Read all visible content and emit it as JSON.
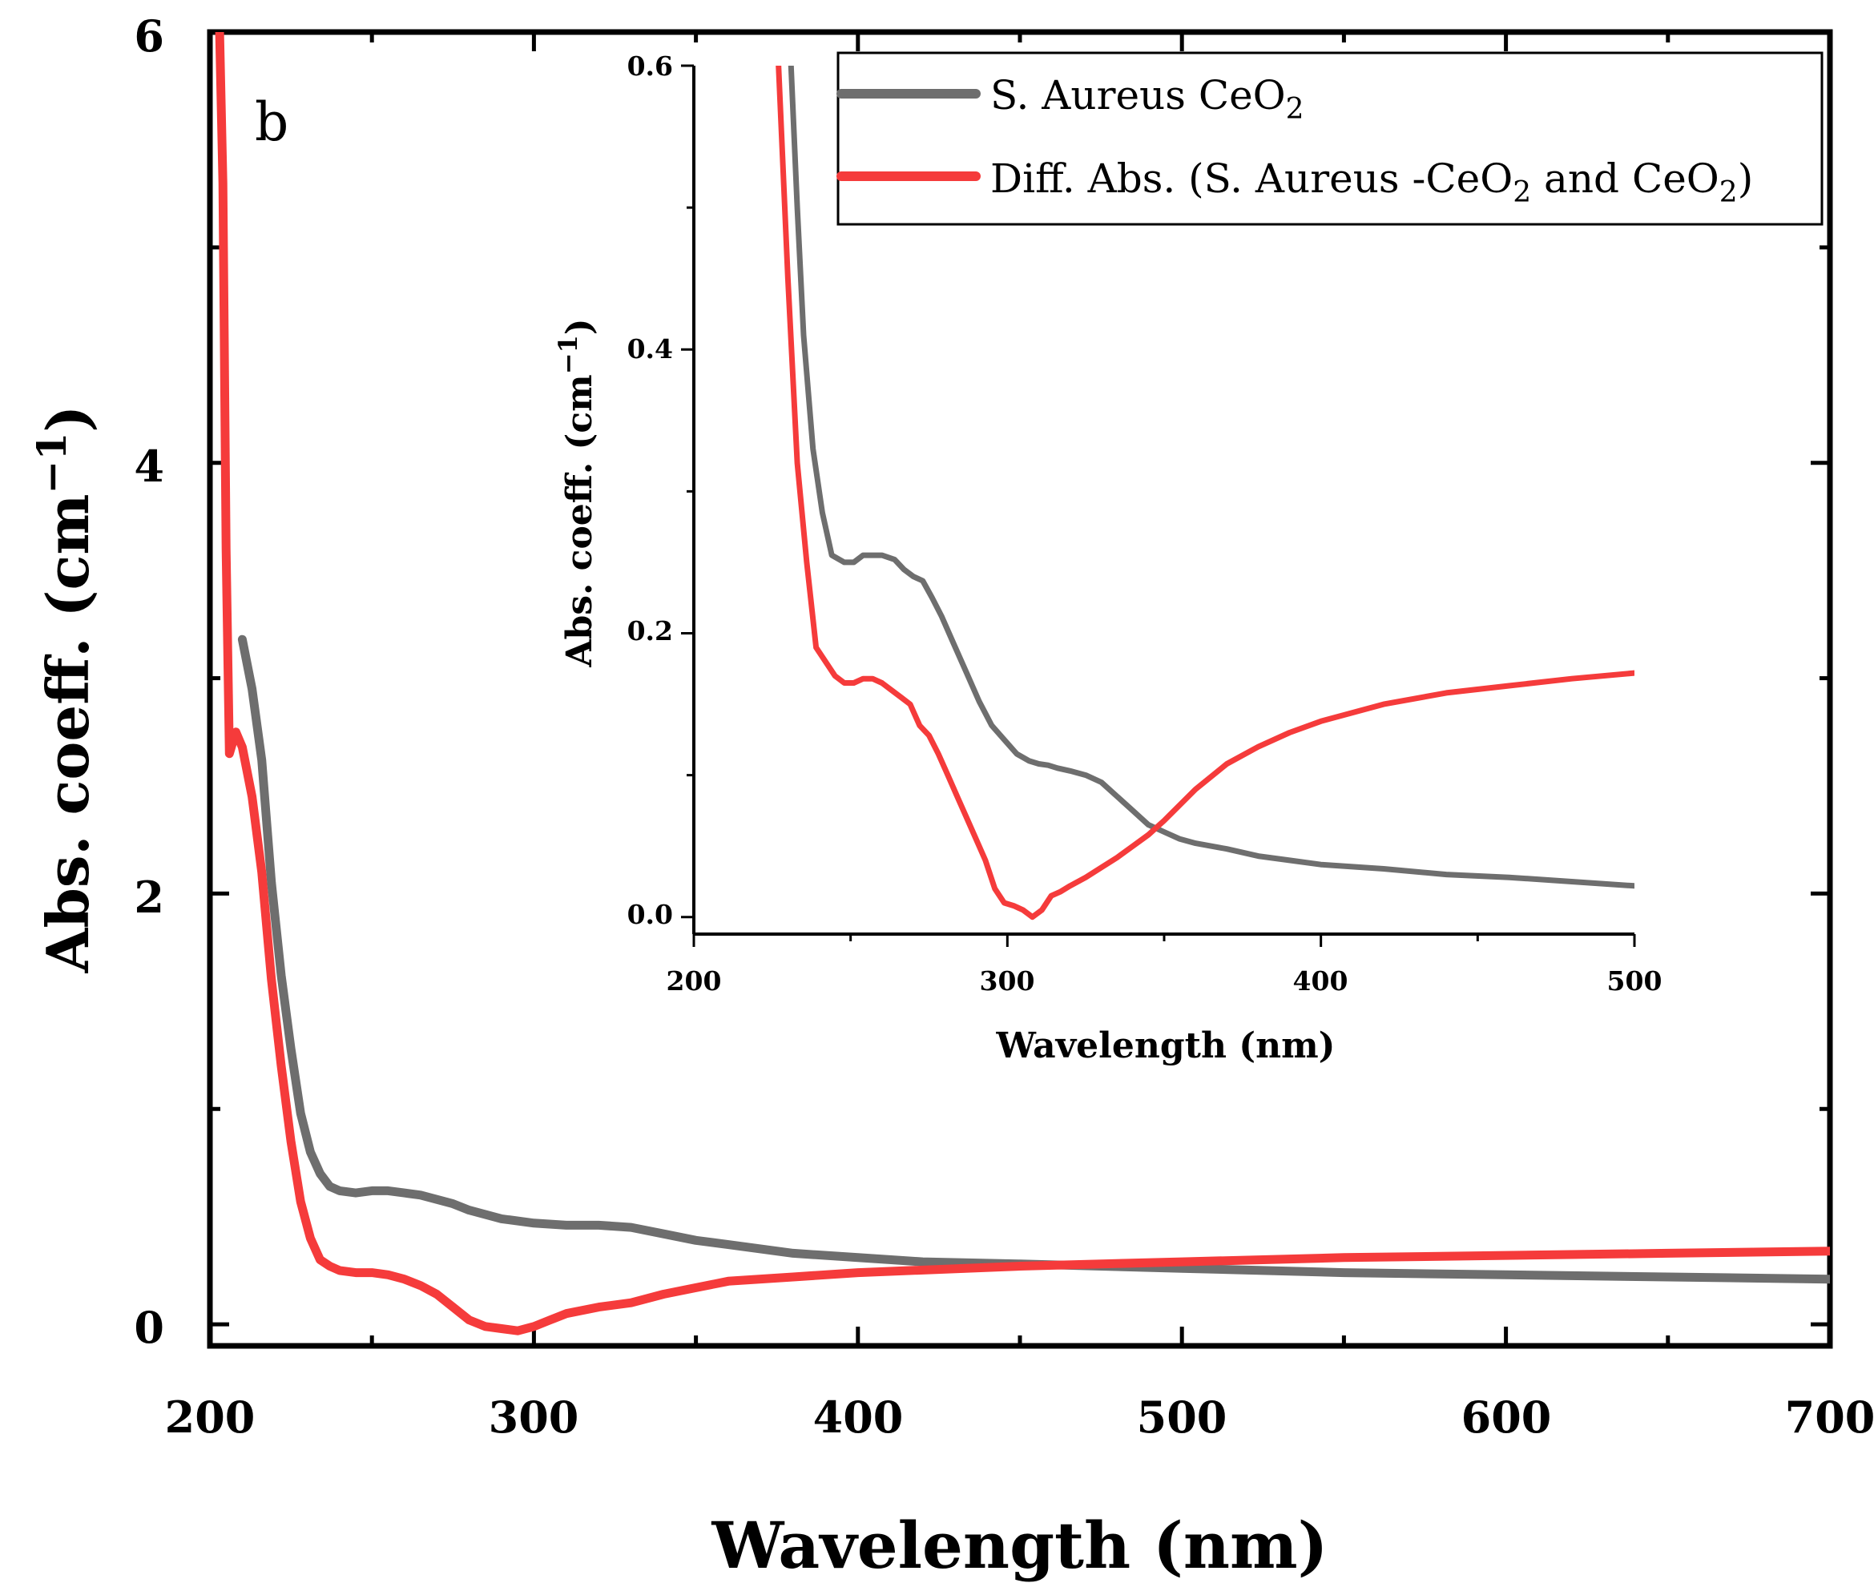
{
  "chart_data": [
    {
      "type": "line",
      "panel_label": "b",
      "xlabel": "Wavelength (nm)",
      "ylabel": "Abs. coeff. (cm",
      "ylabel_sup": "−1",
      "ylabel_close": ")",
      "xlim": [
        200,
        700
      ],
      "ylim": [
        -0.1,
        6
      ],
      "xticks": [
        200,
        300,
        400,
        500,
        600,
        700
      ],
      "yticks": [
        0,
        2,
        4,
        6
      ],
      "series": [
        {
          "name": "S. Aureus CeO2",
          "color": "#6e6e6e",
          "x": [
            210,
            213,
            216,
            219,
            222,
            225,
            228,
            231,
            234,
            237,
            240,
            245,
            250,
            255,
            260,
            265,
            270,
            275,
            280,
            290,
            300,
            310,
            320,
            330,
            340,
            350,
            360,
            380,
            400,
            420,
            450,
            500,
            550,
            600,
            650,
            700
          ],
          "y": [
            3.18,
            2.95,
            2.62,
            2.05,
            1.62,
            1.28,
            0.98,
            0.8,
            0.7,
            0.64,
            0.62,
            0.61,
            0.62,
            0.62,
            0.61,
            0.6,
            0.58,
            0.56,
            0.53,
            0.49,
            0.47,
            0.46,
            0.46,
            0.45,
            0.42,
            0.39,
            0.37,
            0.33,
            0.31,
            0.29,
            0.28,
            0.26,
            0.24,
            0.23,
            0.22,
            0.21
          ]
        },
        {
          "name": "Diff. Abs. (S. Aureus -CeO2 and CeO2)",
          "color": "#f53b3b",
          "x": [
            203,
            204,
            205,
            206,
            207,
            208,
            210,
            213,
            216,
            219,
            222,
            225,
            228,
            231,
            234,
            237,
            240,
            245,
            250,
            255,
            260,
            265,
            270,
            275,
            280,
            285,
            290,
            295,
            300,
            305,
            310,
            320,
            330,
            340,
            350,
            360,
            380,
            400,
            450,
            500,
            550,
            600,
            650,
            700
          ],
          "y": [
            6.0,
            5.3,
            3.6,
            2.65,
            2.7,
            2.75,
            2.68,
            2.45,
            2.1,
            1.6,
            1.2,
            0.85,
            0.57,
            0.4,
            0.3,
            0.27,
            0.25,
            0.24,
            0.24,
            0.23,
            0.21,
            0.18,
            0.14,
            0.08,
            0.02,
            -0.01,
            -0.02,
            -0.03,
            -0.01,
            0.02,
            0.05,
            0.08,
            0.1,
            0.14,
            0.17,
            0.2,
            0.22,
            0.24,
            0.27,
            0.29,
            0.31,
            0.32,
            0.33,
            0.34
          ]
        }
      ]
    },
    {
      "type": "line",
      "role": "inset",
      "xlabel": "Wavelength (nm)",
      "ylabel": "Abs. coeff. (cm",
      "ylabel_sup": "−1",
      "ylabel_close": ")",
      "xlim": [
        200,
        500
      ],
      "ylim": [
        -0.012,
        0.6
      ],
      "xticks": [
        200,
        300,
        400,
        500
      ],
      "yticks": [
        0.0,
        0.2,
        0.4,
        0.6
      ],
      "ytick_labels": [
        "0.0",
        "0.2",
        "0.4",
        "0.6"
      ],
      "series": [
        {
          "name": "S. Aureus CeO2",
          "color": "#6e6e6e",
          "x": [
            231,
            233,
            235,
            238,
            241,
            244,
            248,
            251,
            254,
            257,
            260,
            264,
            267,
            270,
            273,
            276,
            279,
            283,
            287,
            291,
            295,
            299,
            303,
            307,
            310,
            313,
            316,
            320,
            325,
            330,
            335,
            340,
            345,
            350,
            355,
            360,
            370,
            380,
            390,
            400,
            420,
            440,
            460,
            480,
            500
          ],
          "y": [
            0.6,
            0.5,
            0.41,
            0.33,
            0.285,
            0.255,
            0.25,
            0.25,
            0.255,
            0.255,
            0.255,
            0.252,
            0.245,
            0.24,
            0.237,
            0.225,
            0.212,
            0.192,
            0.172,
            0.152,
            0.135,
            0.125,
            0.115,
            0.11,
            0.108,
            0.107,
            0.105,
            0.103,
            0.1,
            0.095,
            0.085,
            0.075,
            0.065,
            0.06,
            0.055,
            0.052,
            0.048,
            0.043,
            0.04,
            0.037,
            0.034,
            0.03,
            0.028,
            0.025,
            0.022
          ]
        },
        {
          "name": "Diff. Abs. (S. Aureus -CeO2 and CeO2)",
          "color": "#f53b3b",
          "x": [
            227,
            230,
            233,
            236,
            239,
            242,
            245,
            248,
            251,
            254,
            257,
            260,
            263,
            266,
            269,
            272,
            275,
            278,
            281,
            284,
            287,
            290,
            293,
            296,
            299,
            302,
            305,
            308,
            311,
            314,
            317,
            320,
            325,
            330,
            335,
            340,
            345,
            350,
            360,
            370,
            380,
            390,
            400,
            420,
            440,
            460,
            480,
            500
          ],
          "y": [
            0.6,
            0.45,
            0.32,
            0.25,
            0.19,
            0.18,
            0.17,
            0.165,
            0.165,
            0.168,
            0.168,
            0.165,
            0.16,
            0.155,
            0.15,
            0.135,
            0.128,
            0.115,
            0.1,
            0.085,
            0.07,
            0.055,
            0.04,
            0.02,
            0.01,
            0.008,
            0.005,
            0.0,
            0.005,
            0.015,
            0.018,
            0.022,
            0.028,
            0.035,
            0.042,
            0.05,
            0.058,
            0.068,
            0.09,
            0.108,
            0.12,
            0.13,
            0.138,
            0.15,
            0.158,
            0.163,
            0.168,
            0.172
          ]
        }
      ]
    }
  ],
  "legend": {
    "items": [
      {
        "prefix": "S. Aureus CeO",
        "sub": "2",
        "mid": "",
        "sub2": "",
        "suffix": ""
      },
      {
        "prefix": "Diff. Abs. (S. Aureus -CeO",
        "sub": "2",
        "mid": " and CeO",
        "sub2": "2",
        "suffix": ")"
      }
    ]
  }
}
